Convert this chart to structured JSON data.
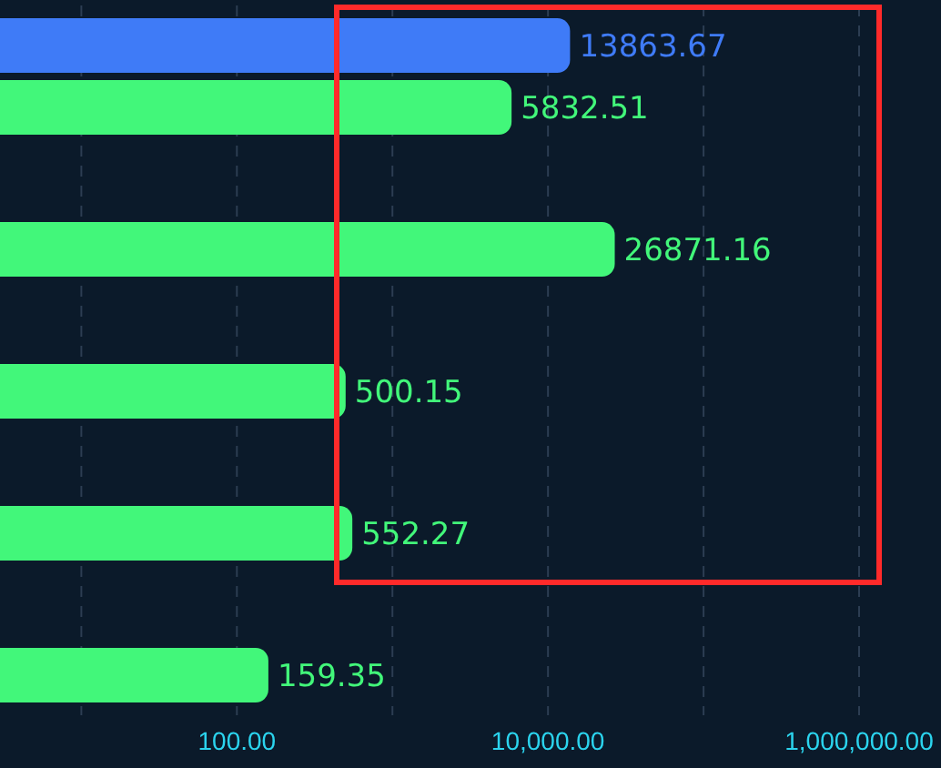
{
  "chart_data": {
    "type": "bar",
    "orientation": "horizontal",
    "log": "x",
    "grid": "x",
    "data_labels": true,
    "categories": [
      null,
      null,
      null,
      null,
      null
    ],
    "series": [
      {
        "color": "#3f7bf7",
        "values": [
          13863.67,
          null,
          null,
          null,
          null
        ]
      },
      {
        "color": "#42f77a",
        "values": [
          5832.51,
          26871.16,
          500.15,
          552.27,
          159.35
        ]
      }
    ],
    "xlim": [
      3,
      1000000
    ],
    "xticks": [
      {
        "value": 10,
        "label": null
      },
      {
        "value": 100,
        "label": "100.00"
      },
      {
        "value": 1000,
        "label": null
      },
      {
        "value": 10000,
        "label": "10,000.00"
      },
      {
        "value": 100000,
        "label": null
      },
      {
        "value": 1000000,
        "label": "1,000,000.00"
      }
    ]
  }
}
